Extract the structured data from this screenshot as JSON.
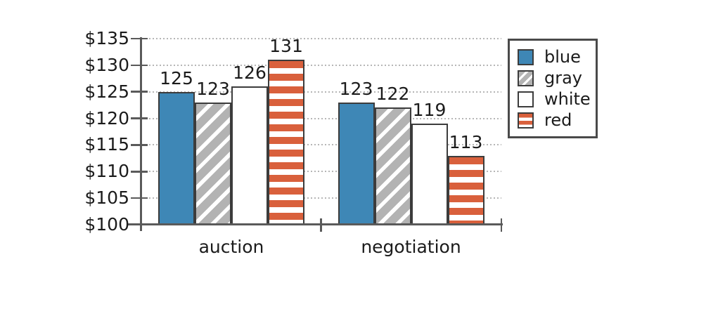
{
  "chart_data": {
    "type": "bar",
    "title": "",
    "categories": [
      "auction",
      "negotiation"
    ],
    "series": [
      {
        "name": "blue",
        "pattern": "solid",
        "color": "#3e87b6",
        "stripe_color": "#ffffff",
        "values": [
          125,
          123
        ]
      },
      {
        "name": "gray",
        "pattern": "diagonal-stripes",
        "color": "#b3b3b3",
        "stripe_color": "#ffffff",
        "values": [
          123,
          122
        ]
      },
      {
        "name": "white",
        "pattern": "plain",
        "color": "#ffffff",
        "stripe_color": "#ffffff",
        "values": [
          126,
          119
        ]
      },
      {
        "name": "red",
        "pattern": "horizontal-stripes",
        "color": "#d9603c",
        "stripe_color": "#ffffff",
        "values": [
          131,
          113
        ]
      }
    ],
    "y_axis": {
      "range": [
        100,
        135
      ],
      "tick_values": [
        100,
        105,
        110,
        115,
        120,
        125,
        130,
        135
      ],
      "tick_labels": [
        "$100",
        "$105",
        "$110",
        "$115",
        "$120",
        "$125",
        "$130",
        "$135"
      ],
      "currency_prefix": "$"
    },
    "value_labels_shown": true,
    "grid": "horizontal-dotted",
    "legend": {
      "position": "top-right",
      "items": [
        "blue",
        "gray",
        "white",
        "red"
      ]
    }
  },
  "style": {
    "background": "#ffffff",
    "axis_color": "#5a5a5a",
    "bar_border_color": "#3c3c3c",
    "legend_border_color": "#4a4a4a",
    "grid_color": "#b6b6b6",
    "text_color": "#1b1b1b"
  }
}
